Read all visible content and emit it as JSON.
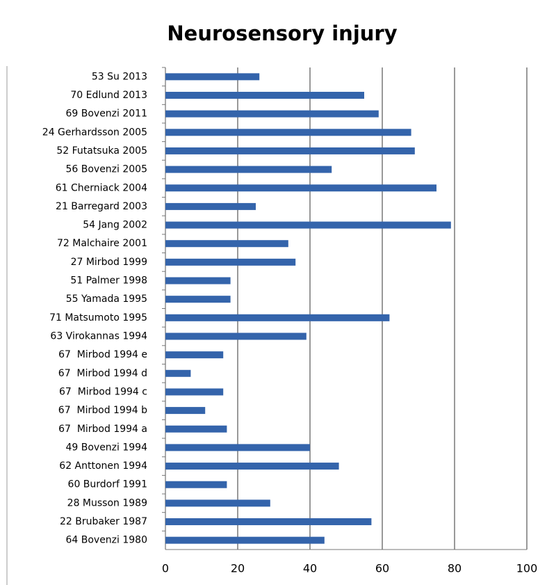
{
  "chart_data": {
    "type": "hbar",
    "title": "Neurosensory injury",
    "categories": [
      "53 Su 2013",
      "70 Edlund 2013",
      "69 Bovenzi 2011",
      "24 Gerhardsson 2005",
      "52 Futatsuka 2005",
      "56 Bovenzi 2005",
      "61 Cherniack 2004",
      "21 Barregard 2003",
      "54 Jang 2002",
      "72 Malchaire 2001",
      "27 Mirbod 1999",
      "51 Palmer 1998",
      "55 Yamada 1995",
      "71 Matsumoto 1995",
      "63 Virokannas 1994",
      "67  Mirbod 1994 e",
      "67  Mirbod 1994 d",
      "67  Mirbod 1994 c",
      "67  Mirbod 1994 b",
      "67  Mirbod 1994 a",
      "49 Bovenzi 1994",
      "62 Anttonen 1994",
      "60 Burdorf 1991",
      "28 Musson 1989",
      "22 Brubaker 1987",
      "64 Bovenzi 1980"
    ],
    "values": [
      26,
      55,
      59,
      68,
      69,
      46,
      75,
      25,
      79,
      34,
      36,
      18,
      18,
      62,
      39,
      16,
      7,
      16,
      11,
      17,
      40,
      48,
      17,
      29,
      57,
      44
    ],
    "color": "#3464ab",
    "xlim": [
      0,
      100
    ],
    "xticks": [
      0,
      20,
      40,
      60,
      80,
      100
    ],
    "grid": true
  }
}
